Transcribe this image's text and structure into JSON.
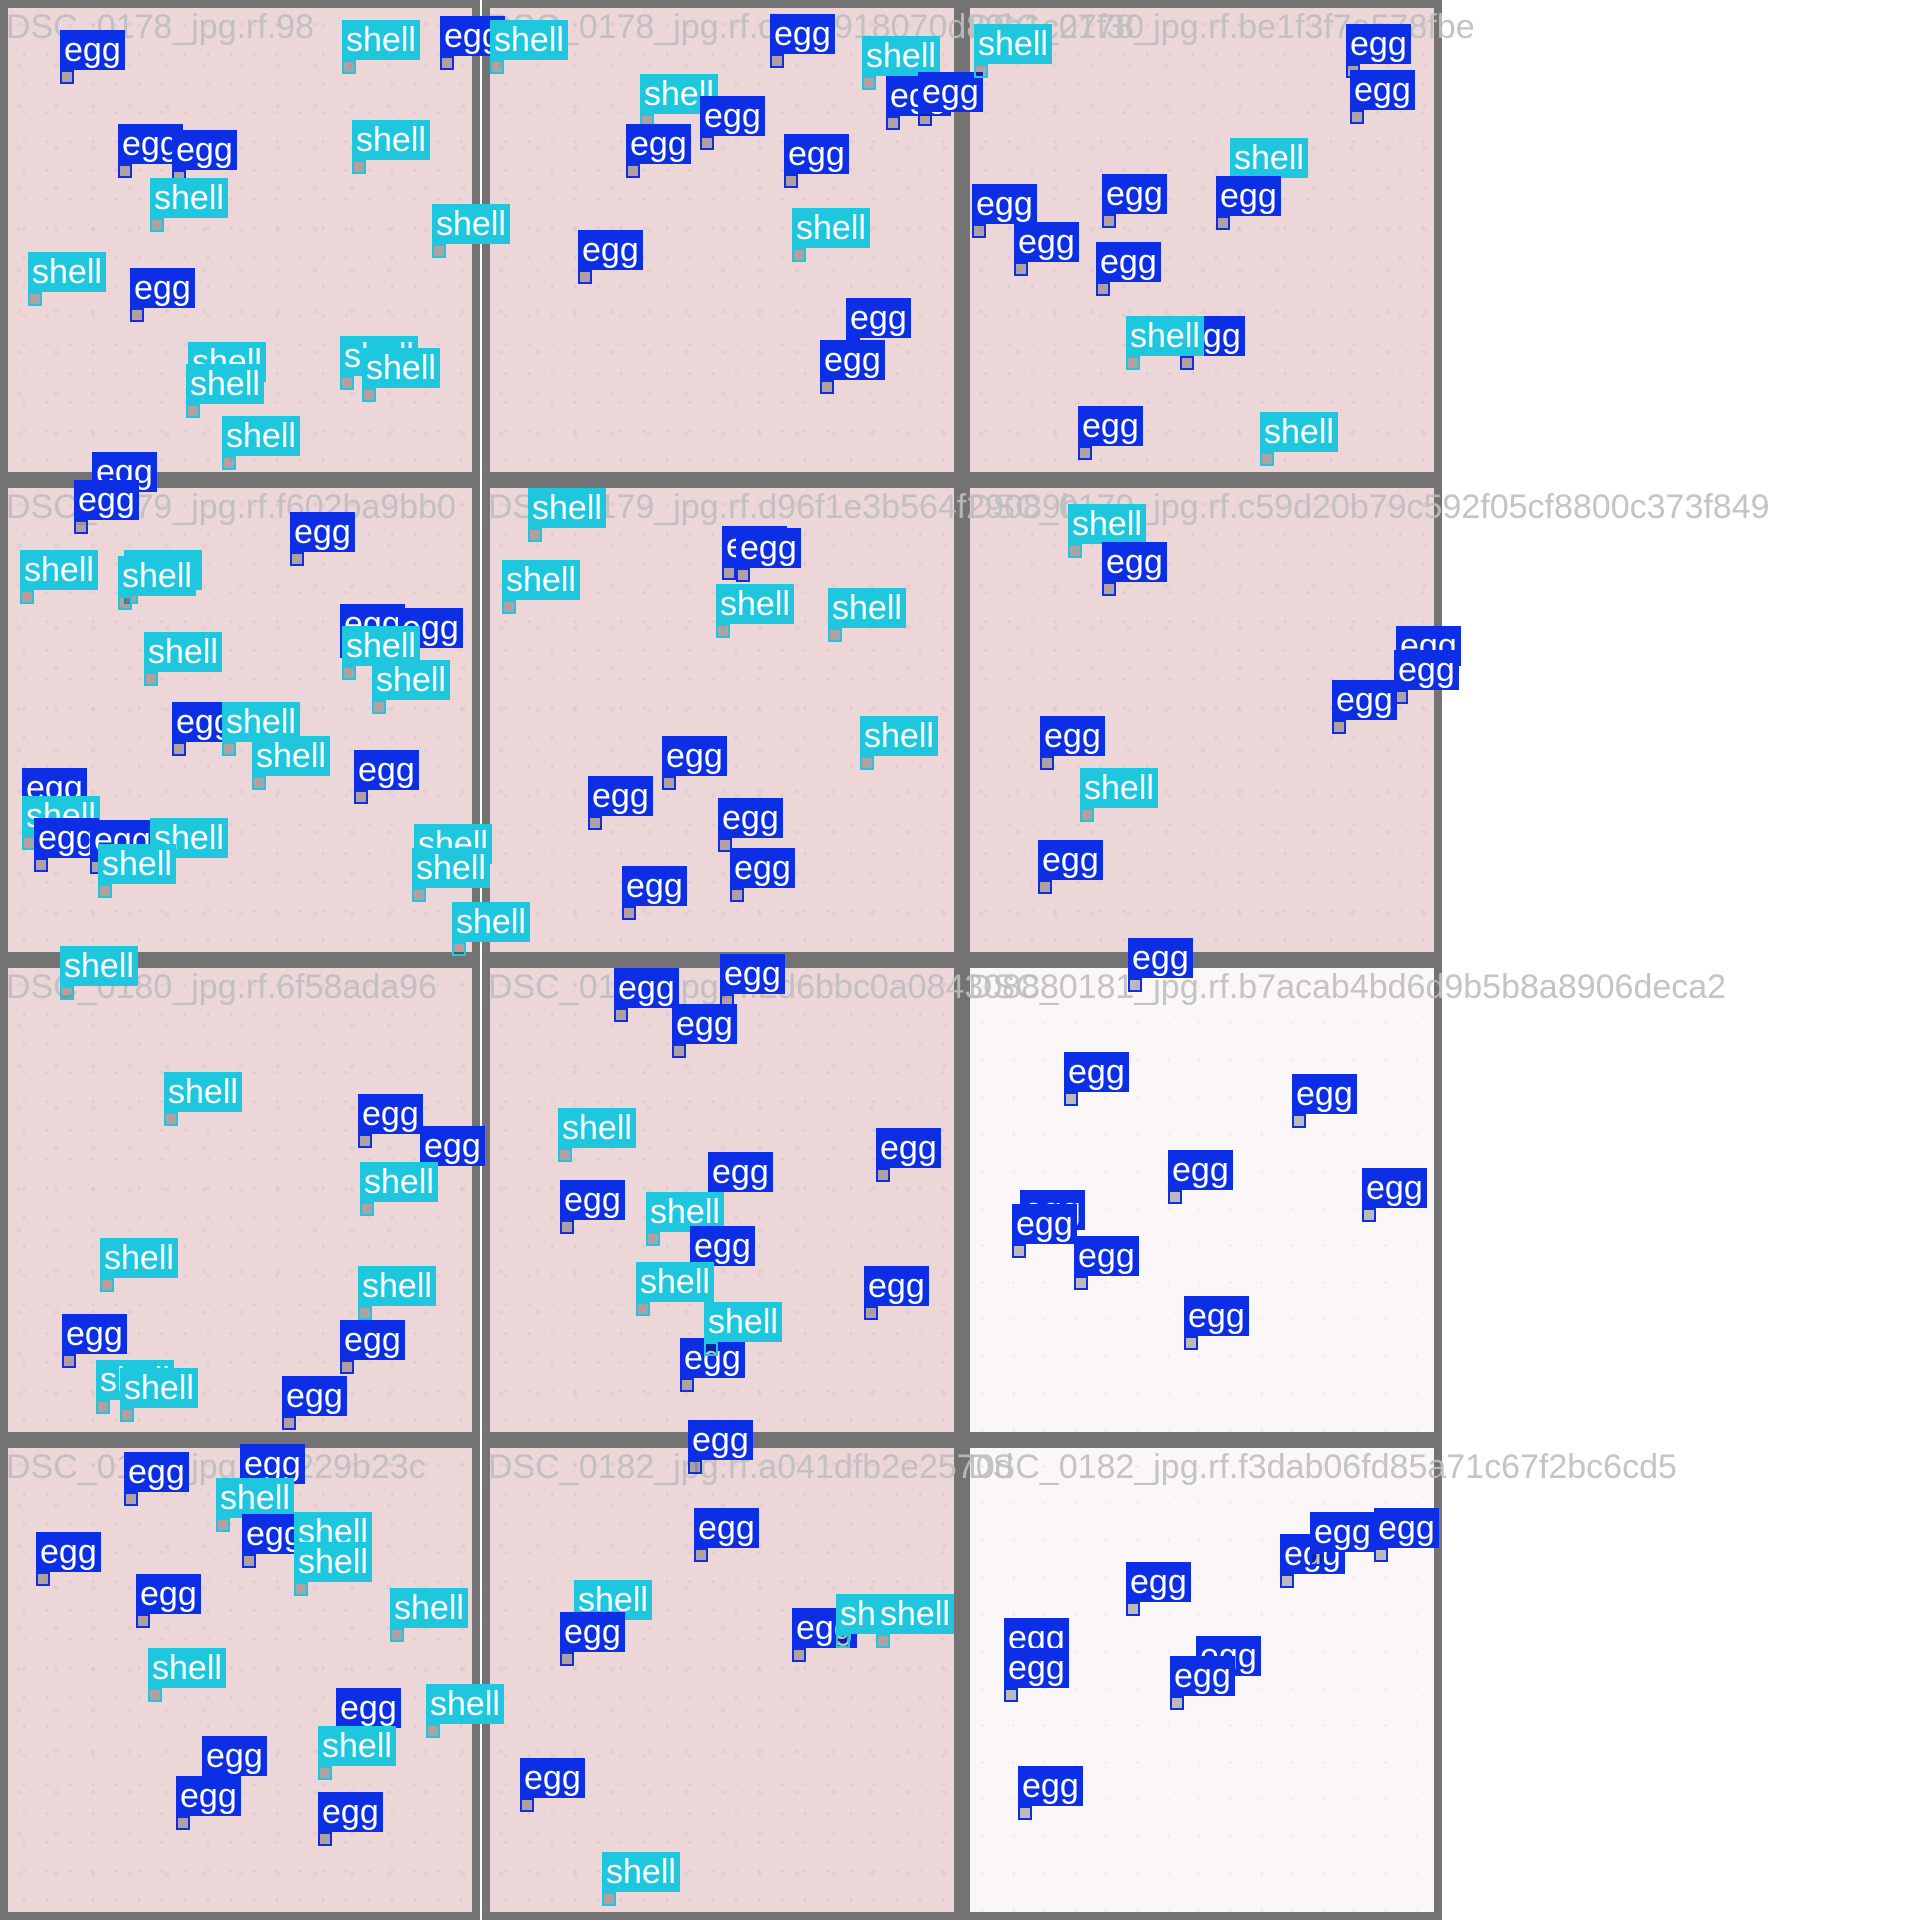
{
  "colors": {
    "egg": "#0c2fe6",
    "shell": "#1ec6de",
    "tile_border": "#737373"
  },
  "tiles": [
    {
      "title": "DSC_0178_jpg.rf.98",
      "bg": "pink",
      "labels": [
        [
          "egg",
          60,
          30
        ],
        [
          "shell",
          342,
          20
        ],
        [
          "egg",
          440,
          16
        ],
        [
          "egg",
          118,
          124
        ],
        [
          "egg",
          172,
          130
        ],
        [
          "shell",
          150,
          178
        ],
        [
          "shell",
          352,
          120
        ],
        [
          "shell",
          432,
          204
        ],
        [
          "shell",
          28,
          252
        ],
        [
          "egg",
          130,
          268
        ],
        [
          "shell",
          188,
          342
        ],
        [
          "shell",
          340,
          336
        ],
        [
          "shell",
          362,
          348
        ],
        [
          "shell",
          186,
          364
        ],
        [
          "shell",
          222,
          416
        ]
      ]
    },
    {
      "title": "DSC_0178_jpg.rf.d9e4918070d80b1c27f30",
      "bg": "pink",
      "labels": [
        [
          "shell",
          490,
          20
        ],
        [
          "egg",
          770,
          14
        ],
        [
          "shell",
          862,
          36
        ],
        [
          "egg",
          886,
          76
        ],
        [
          "egg",
          918,
          72
        ],
        [
          "shell",
          640,
          74
        ],
        [
          "egg",
          700,
          96
        ],
        [
          "egg",
          626,
          124
        ],
        [
          "egg",
          784,
          134
        ],
        [
          "shell",
          792,
          208
        ],
        [
          "egg",
          578,
          230
        ],
        [
          "egg",
          846,
          298
        ],
        [
          "egg",
          820,
          340
        ]
      ]
    },
    {
      "title": "DSC_0178_jpg.rf.be1f3f7a578fbe",
      "bg": "pink",
      "labels": [
        [
          "shell",
          974,
          24
        ],
        [
          "egg",
          1346,
          24
        ],
        [
          "egg",
          1350,
          70
        ],
        [
          "egg",
          1102,
          174
        ],
        [
          "shell",
          1230,
          138
        ],
        [
          "egg",
          1216,
          176
        ],
        [
          "egg",
          972,
          184
        ],
        [
          "egg",
          1014,
          222
        ],
        [
          "egg",
          1096,
          242
        ],
        [
          "egg",
          1180,
          316
        ],
        [
          "shell",
          1126,
          316
        ],
        [
          "egg",
          1078,
          406
        ],
        [
          "shell",
          1260,
          412
        ]
      ]
    },
    {
      "title": "DSC_0179_jpg.rf.f602ba9bb0",
      "bg": "pink",
      "labels": [
        [
          "egg",
          92,
          452
        ],
        [
          "egg",
          74,
          480
        ],
        [
          "egg",
          290,
          512
        ],
        [
          "shell",
          20,
          550
        ],
        [
          "shell",
          124,
          550
        ],
        [
          "shell",
          118,
          556
        ],
        [
          "shell",
          144,
          632
        ],
        [
          "egg",
          340,
          604
        ],
        [
          "egg",
          398,
          608
        ],
        [
          "shell",
          342,
          626
        ],
        [
          "shell",
          372,
          660
        ],
        [
          "egg",
          172,
          702
        ],
        [
          "shell",
          222,
          702
        ],
        [
          "shell",
          252,
          736
        ],
        [
          "egg",
          354,
          750
        ],
        [
          "egg",
          22,
          768
        ],
        [
          "shell",
          22,
          796
        ],
        [
          "egg",
          34,
          818
        ],
        [
          "egg",
          90,
          820
        ],
        [
          "shell",
          150,
          818
        ],
        [
          "shell",
          98,
          844
        ],
        [
          "shell",
          414,
          824
        ],
        [
          "shell",
          412,
          848
        ],
        [
          "shell",
          452,
          902
        ],
        [
          "shell",
          60,
          946
        ]
      ]
    },
    {
      "title": "DSC_0179_jpg.rf.d96f1e3b564f29089b",
      "bg": "pink",
      "labels": [
        [
          "shell",
          528,
          488
        ],
        [
          "egg",
          722,
          526
        ],
        [
          "egg",
          736,
          528
        ],
        [
          "shell",
          502,
          560
        ],
        [
          "shell",
          716,
          584
        ],
        [
          "shell",
          828,
          588
        ],
        [
          "shell",
          860,
          716
        ],
        [
          "egg",
          662,
          736
        ],
        [
          "egg",
          588,
          776
        ],
        [
          "egg",
          718,
          798
        ],
        [
          "egg",
          730,
          848
        ],
        [
          "egg",
          622,
          866
        ]
      ]
    },
    {
      "title": "DSC_0179_jpg.rf.c59d20b79c592f05cf8800c373f849",
      "bg": "pink",
      "labels": [
        [
          "shell",
          1068,
          504
        ],
        [
          "egg",
          1102,
          542
        ],
        [
          "egg",
          1396,
          626
        ],
        [
          "egg",
          1394,
          650
        ],
        [
          "egg",
          1332,
          680
        ],
        [
          "egg",
          1040,
          716
        ],
        [
          "shell",
          1080,
          768
        ],
        [
          "egg",
          1038,
          840
        ],
        [
          "egg",
          1128,
          938
        ]
      ]
    },
    {
      "title": "DSC_0180_jpg.rf.6f58ada96",
      "bg": "pink",
      "labels": [
        [
          "shell",
          164,
          1072
        ],
        [
          "egg",
          358,
          1094
        ],
        [
          "egg",
          420,
          1126
        ],
        [
          "shell",
          360,
          1162
        ],
        [
          "shell",
          100,
          1238
        ],
        [
          "shell",
          358,
          1266
        ],
        [
          "egg",
          62,
          1314
        ],
        [
          "egg",
          340,
          1320
        ],
        [
          "shell",
          96,
          1360
        ],
        [
          "shell",
          120,
          1368
        ],
        [
          "egg",
          282,
          1376
        ]
      ]
    },
    {
      "title": "DSC_0180_jpg.rf.2d6bbc0a08430888",
      "bg": "pink",
      "labels": [
        [
          "egg",
          614,
          968
        ],
        [
          "egg",
          720,
          954
        ],
        [
          "egg",
          672,
          1004
        ],
        [
          "shell",
          558,
          1108
        ],
        [
          "egg",
          876,
          1128
        ],
        [
          "egg",
          708,
          1152
        ],
        [
          "egg",
          560,
          1180
        ],
        [
          "shell",
          646,
          1192
        ],
        [
          "egg",
          690,
          1226
        ],
        [
          "shell",
          636,
          1262
        ],
        [
          "egg",
          864,
          1266
        ],
        [
          "egg",
          680,
          1338
        ],
        [
          "shell",
          704,
          1302
        ]
      ]
    },
    {
      "title": "DSC_0181_jpg.rf.b7acab4bd6d9b5b8a8906deca2",
      "bg": "white",
      "labels": [
        [
          "egg",
          1064,
          1052
        ],
        [
          "egg",
          1292,
          1074
        ],
        [
          "egg",
          1168,
          1150
        ],
        [
          "egg",
          1362,
          1168
        ],
        [
          "egg",
          1020,
          1190
        ],
        [
          "egg",
          1012,
          1204
        ],
        [
          "egg",
          1074,
          1236
        ],
        [
          "egg",
          1184,
          1296
        ]
      ]
    },
    {
      "title": "DSC_0181_jpg.rf.d229b23c",
      "bg": "pink",
      "labels": [
        [
          "egg",
          124,
          1452
        ],
        [
          "egg",
          240,
          1444
        ],
        [
          "shell",
          216,
          1478
        ],
        [
          "egg",
          242,
          1514
        ],
        [
          "shell",
          294,
          1512
        ],
        [
          "shell",
          294,
          1542
        ],
        [
          "egg",
          36,
          1532
        ],
        [
          "egg",
          136,
          1574
        ],
        [
          "shell",
          390,
          1588
        ],
        [
          "shell",
          148,
          1648
        ],
        [
          "egg",
          336,
          1688
        ],
        [
          "shell",
          426,
          1684
        ],
        [
          "egg",
          202,
          1736
        ],
        [
          "shell",
          318,
          1726
        ],
        [
          "egg",
          176,
          1776
        ],
        [
          "egg",
          318,
          1792
        ]
      ]
    },
    {
      "title": "DSC_0182_jpg.rf.a041dfb2e2570d",
      "bg": "pink",
      "labels": [
        [
          "egg",
          688,
          1420
        ],
        [
          "egg",
          694,
          1508
        ],
        [
          "shell",
          574,
          1580
        ],
        [
          "egg",
          560,
          1612
        ],
        [
          "egg",
          792,
          1608
        ],
        [
          "shell",
          836,
          1594
        ],
        [
          "shell",
          876,
          1594
        ],
        [
          "egg",
          520,
          1758
        ],
        [
          "shell",
          602,
          1852
        ]
      ]
    },
    {
      "title": "DSC_0182_jpg.rf.f3dab06fd85a71c67f2bc6cd5",
      "bg": "white",
      "labels": [
        [
          "egg",
          1126,
          1562
        ],
        [
          "egg",
          1280,
          1534
        ],
        [
          "egg",
          1310,
          1512
        ],
        [
          "egg",
          1374,
          1508
        ],
        [
          "egg",
          1004,
          1618
        ],
        [
          "egg",
          1004,
          1648
        ],
        [
          "egg",
          1196,
          1636
        ],
        [
          "egg",
          1170,
          1656
        ],
        [
          "egg",
          1018,
          1766
        ]
      ]
    }
  ]
}
